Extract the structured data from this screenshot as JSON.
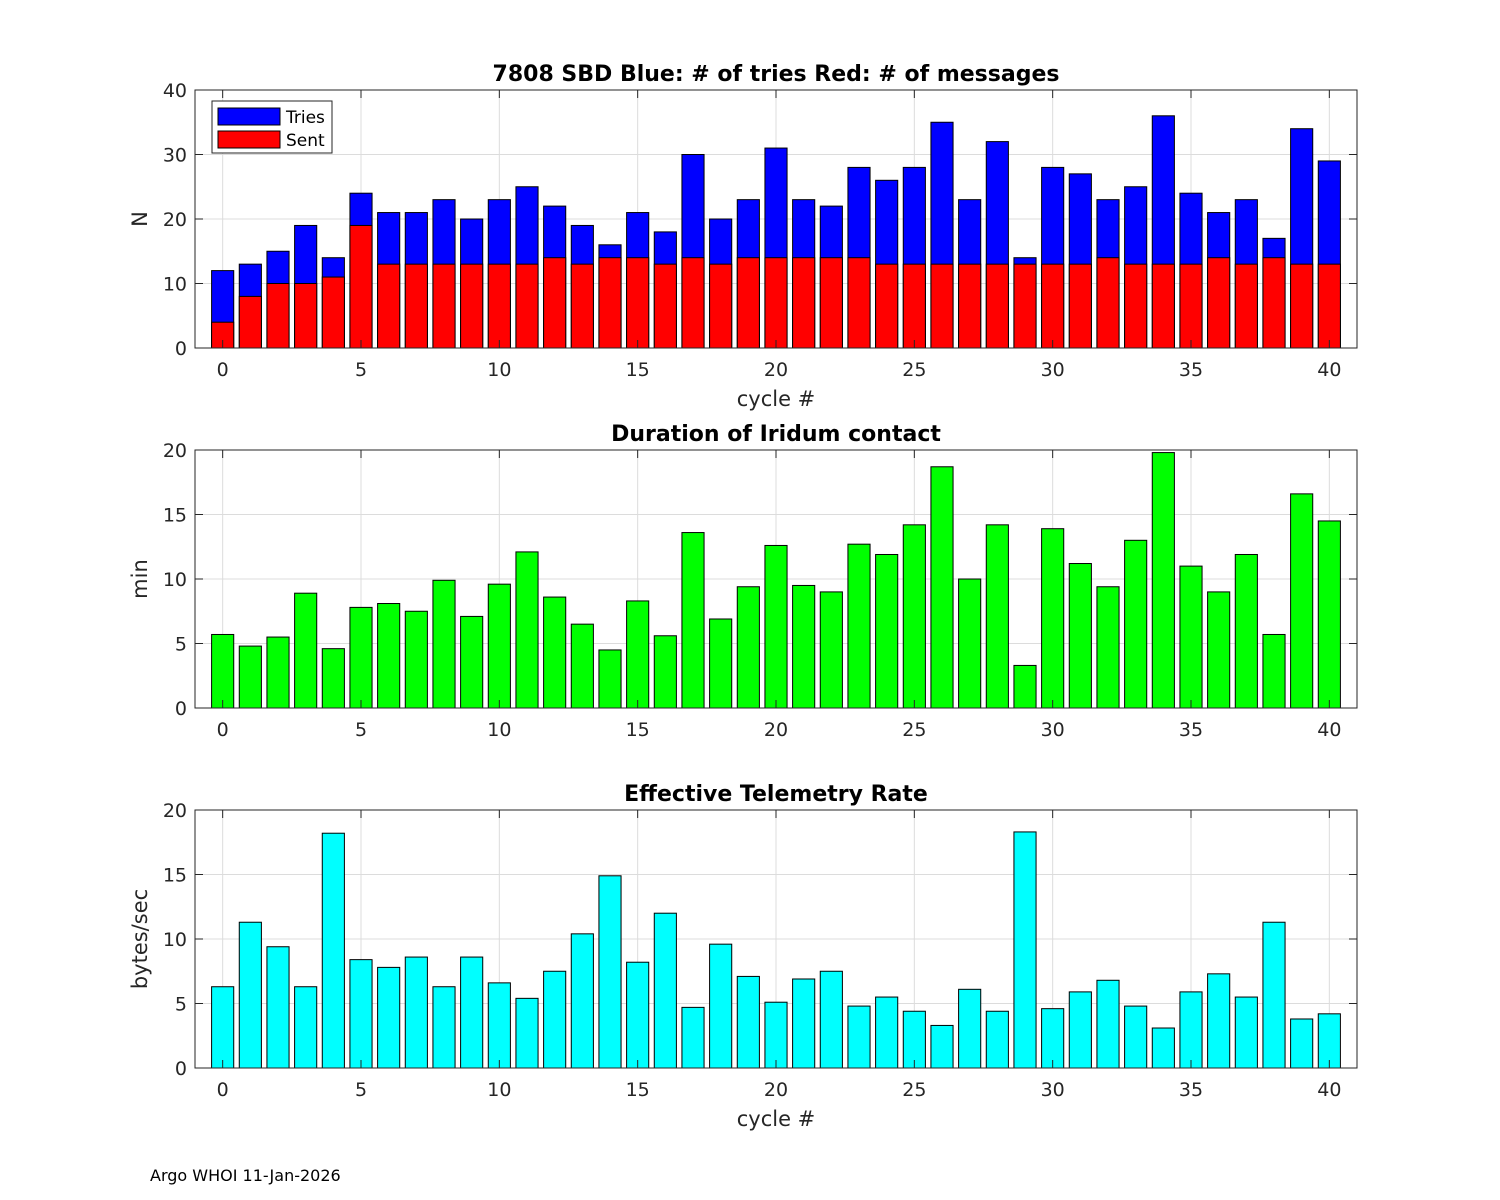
{
  "footer": "Argo WHOI 11-Jan-2026",
  "colors": {
    "tries": "#0000ff",
    "sent": "#ff0000",
    "duration": "#00ff00",
    "rate": "#00ffff",
    "grid": "#dcdcdc",
    "axis": "#262626"
  },
  "chart_data": [
    {
      "type": "bar",
      "stacked_overlay": true,
      "title": "7808 SBD  Blue: # of tries   Red: # of messages",
      "xlabel": "cycle #",
      "ylabel": "N",
      "xlim": [
        -1,
        41
      ],
      "ylim": [
        0,
        40
      ],
      "xticks": [
        0,
        5,
        10,
        15,
        20,
        25,
        30,
        35,
        40
      ],
      "yticks": [
        0,
        10,
        20,
        30,
        40
      ],
      "legend": {
        "placement": "top-left",
        "entries": [
          "Tries",
          "Sent"
        ]
      },
      "x": [
        0,
        1,
        2,
        3,
        4,
        5,
        6,
        7,
        8,
        9,
        10,
        11,
        12,
        13,
        14,
        15,
        16,
        17,
        18,
        19,
        20,
        21,
        22,
        23,
        24,
        25,
        26,
        27,
        28,
        29,
        30,
        31,
        32,
        33,
        34,
        35,
        36,
        37,
        38,
        39,
        40
      ],
      "series": [
        {
          "name": "Tries",
          "color": "#0000ff",
          "values": [
            12,
            13,
            15,
            19,
            14,
            24,
            21,
            21,
            23,
            20,
            23,
            25,
            22,
            19,
            16,
            21,
            18,
            30,
            20,
            23,
            31,
            23,
            22,
            28,
            26,
            28,
            35,
            23,
            32,
            14,
            28,
            27,
            23,
            25,
            36,
            24,
            21,
            23,
            17,
            34,
            29
          ]
        },
        {
          "name": "Sent",
          "color": "#ff0000",
          "values": [
            4,
            8,
            10,
            10,
            11,
            19,
            13,
            13,
            13,
            13,
            13,
            13,
            14,
            13,
            14,
            14,
            13,
            14,
            13,
            14,
            14,
            14,
            14,
            14,
            13,
            13,
            13,
            13,
            13,
            13,
            13,
            13,
            14,
            13,
            13,
            13,
            14,
            13,
            14,
            13,
            13
          ]
        }
      ]
    },
    {
      "type": "bar",
      "title": "Duration of Iridum contact",
      "xlabel": "",
      "ylabel": "min",
      "xlim": [
        -1,
        41
      ],
      "ylim": [
        0,
        20
      ],
      "xticks": [
        0,
        5,
        10,
        15,
        20,
        25,
        30,
        35,
        40
      ],
      "yticks": [
        0,
        5,
        10,
        15,
        20
      ],
      "x": [
        -1,
        0,
        1,
        2,
        3,
        4,
        5,
        6,
        7,
        8,
        9,
        10,
        11,
        12,
        13,
        14,
        15,
        16,
        17,
        18,
        19,
        20,
        21,
        22,
        23,
        24,
        25,
        26,
        27,
        28,
        29,
        30,
        31,
        32,
        33,
        34,
        35,
        36,
        37,
        38,
        39,
        40
      ],
      "series": [
        {
          "name": "Duration",
          "color": "#00ff00",
          "values": [
            0,
            5.7,
            4.8,
            5.5,
            8.9,
            4.6,
            7.8,
            8.1,
            7.5,
            9.9,
            7.1,
            9.6,
            12.1,
            8.6,
            6.5,
            4.5,
            8.3,
            5.6,
            13.6,
            6.9,
            9.4,
            12.6,
            9.5,
            9.0,
            12.7,
            11.9,
            14.2,
            18.7,
            10.0,
            14.2,
            3.3,
            13.9,
            11.2,
            9.4,
            13.0,
            19.8,
            11.0,
            9.0,
            11.9,
            5.7,
            16.6,
            14.5
          ]
        }
      ]
    },
    {
      "type": "bar",
      "title": "Effective Telemetry Rate",
      "xlabel": "cycle #",
      "ylabel": "bytes/sec",
      "xlim": [
        -1,
        41
      ],
      "ylim": [
        0,
        20
      ],
      "xticks": [
        0,
        5,
        10,
        15,
        20,
        25,
        30,
        35,
        40
      ],
      "yticks": [
        0,
        5,
        10,
        15,
        20
      ],
      "x": [
        0,
        1,
        2,
        3,
        4,
        5,
        6,
        7,
        8,
        9,
        10,
        11,
        12,
        13,
        14,
        15,
        16,
        17,
        18,
        19,
        20,
        21,
        22,
        23,
        24,
        25,
        26,
        27,
        28,
        29,
        30,
        31,
        32,
        33,
        34,
        35,
        36,
        37,
        38,
        39,
        40
      ],
      "series": [
        {
          "name": "Rate",
          "color": "#00ffff",
          "values": [
            6.3,
            11.3,
            9.4,
            6.3,
            18.2,
            8.4,
            7.8,
            8.6,
            6.3,
            8.6,
            6.6,
            5.4,
            7.5,
            10.4,
            14.9,
            8.2,
            12.0,
            4.7,
            9.6,
            7.1,
            5.1,
            6.9,
            7.5,
            4.8,
            5.5,
            4.4,
            3.3,
            6.1,
            4.4,
            18.3,
            4.6,
            5.9,
            6.8,
            4.8,
            3.1,
            5.9,
            7.3,
            5.5,
            11.3,
            3.8,
            4.2
          ]
        }
      ]
    }
  ]
}
